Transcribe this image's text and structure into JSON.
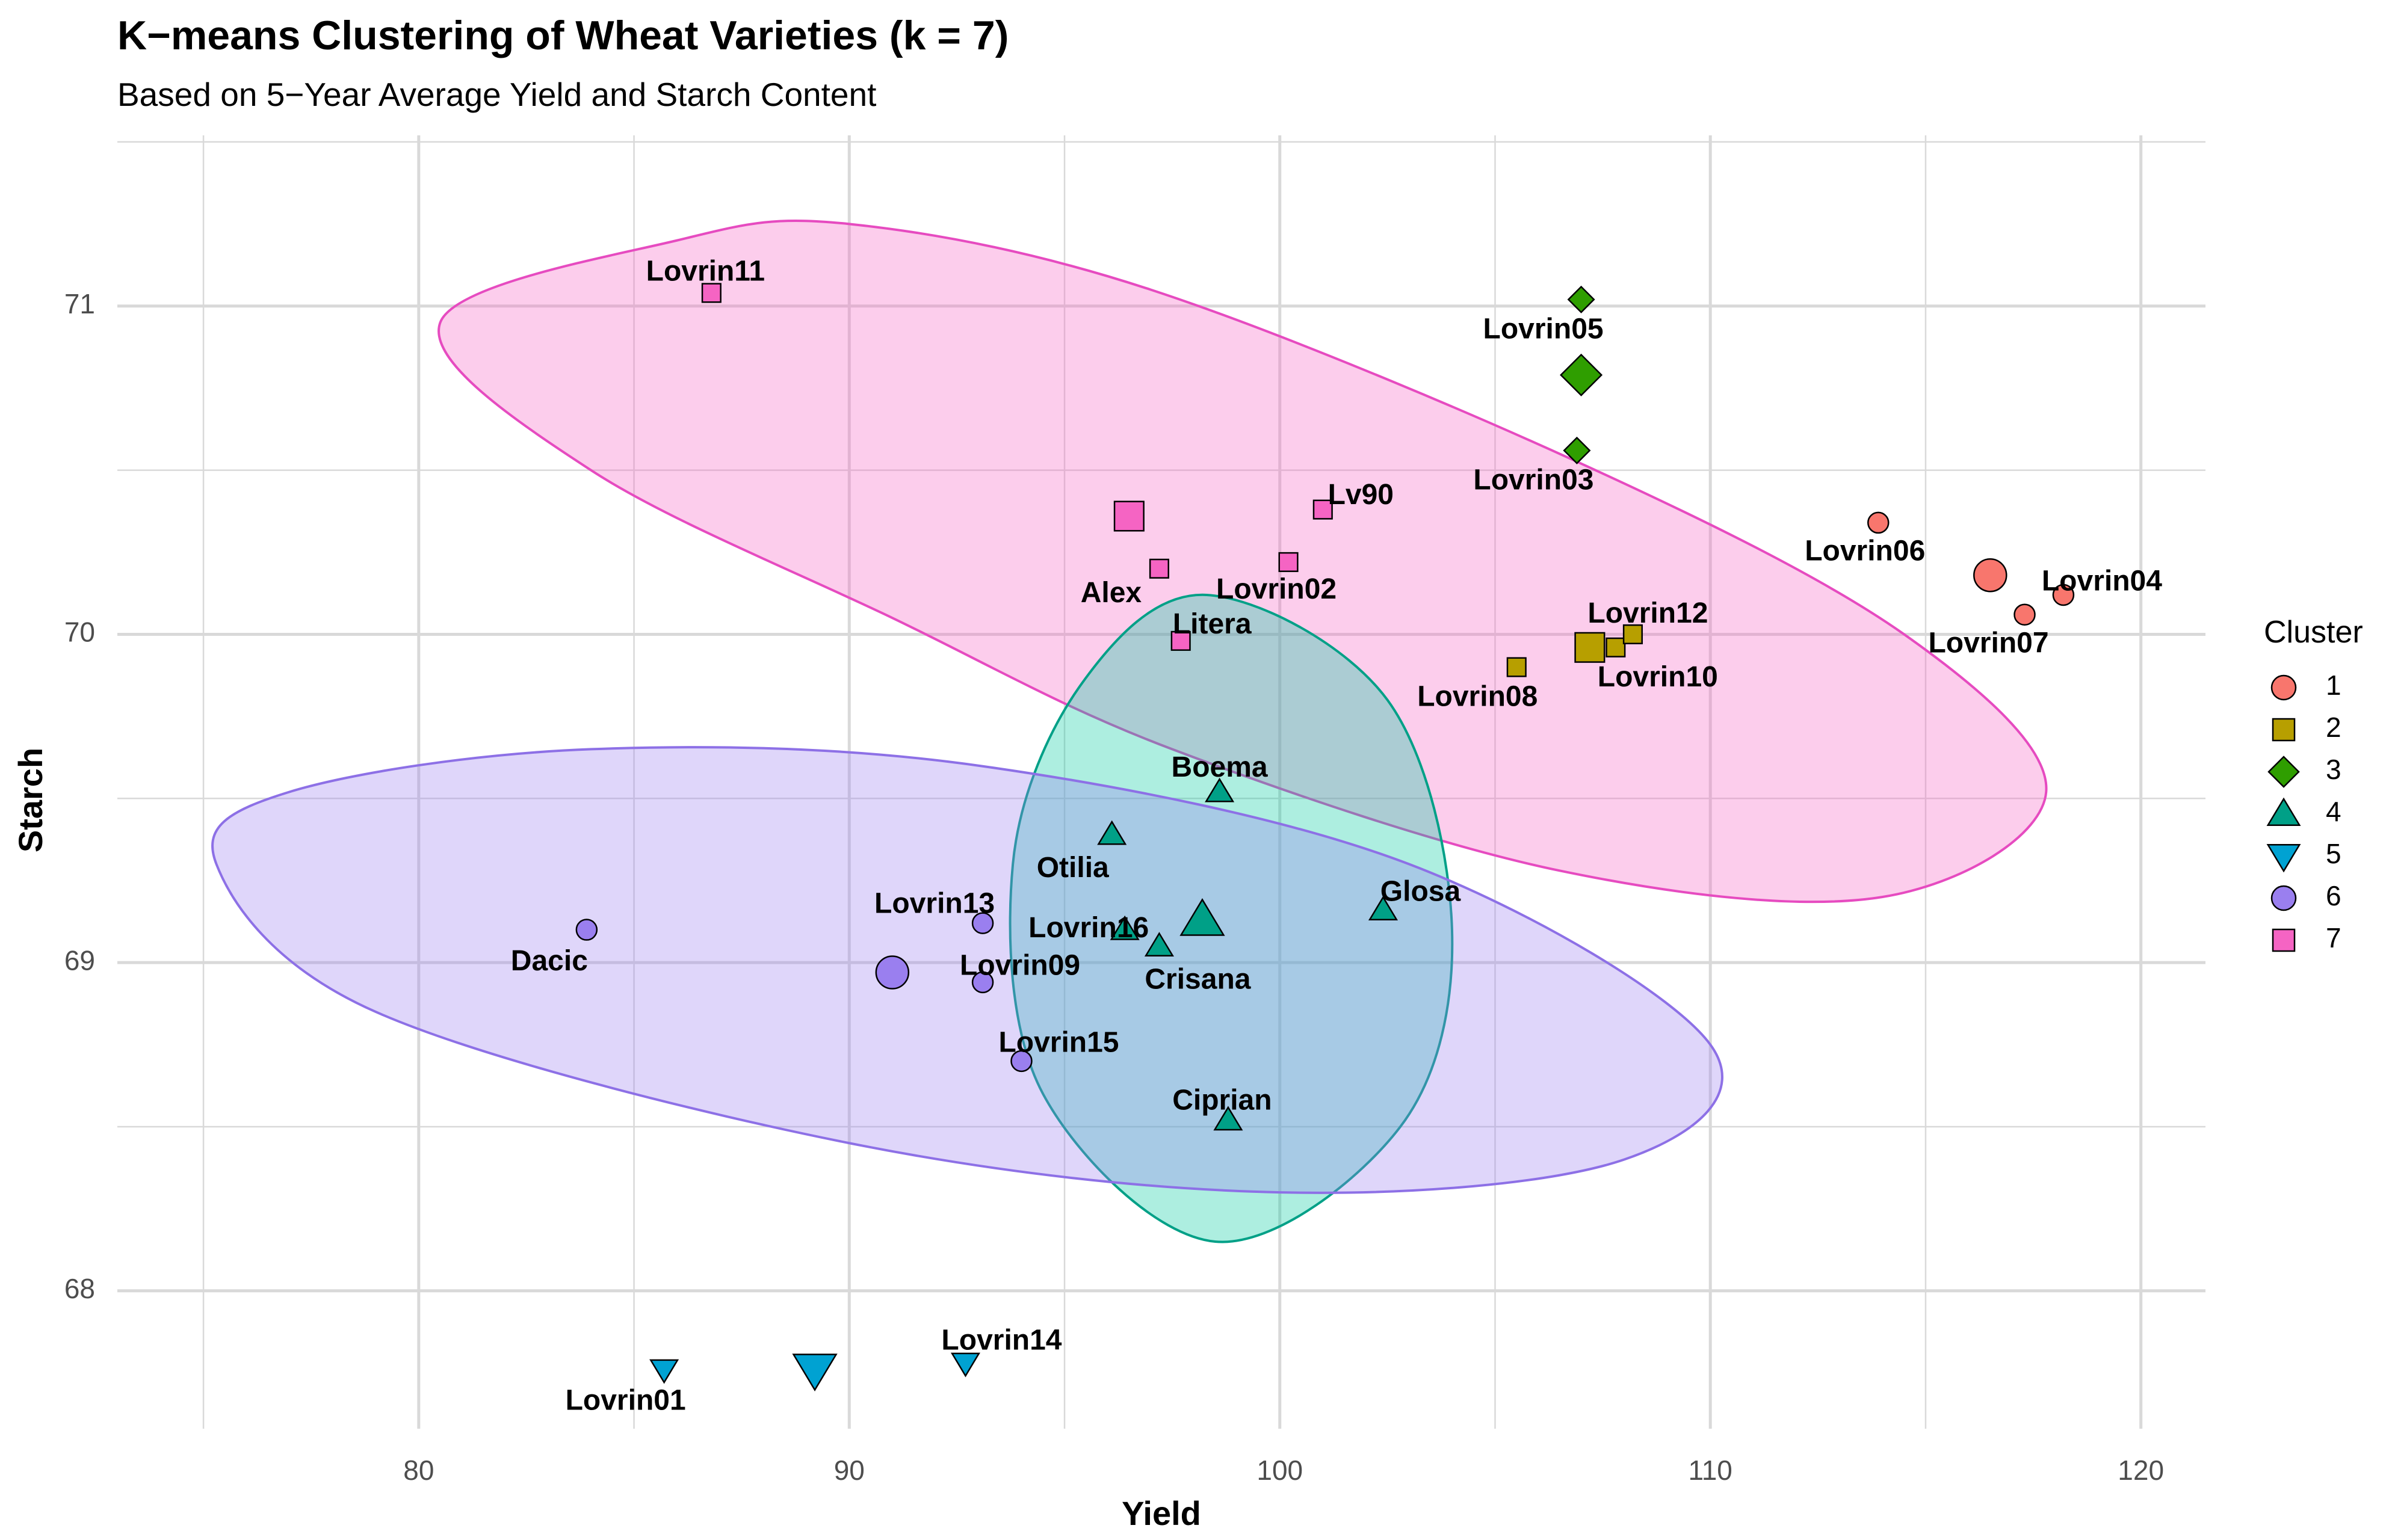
{
  "chart_data": {
    "type": "scatter",
    "title": "K−means Clustering of Wheat Varieties (k = 7)",
    "subtitle": "Based on 5−Year Average Yield and Starch Content",
    "xlabel": "Yield",
    "ylabel": "Starch",
    "xlim": [
      73,
      121.5
    ],
    "ylim": [
      67.58,
      71.52
    ],
    "x_ticks": [
      80,
      90,
      100,
      110,
      120
    ],
    "y_ticks": [
      68,
      69,
      70,
      71
    ],
    "x_tick_labels": [
      "80",
      "90",
      "100",
      "110",
      "120"
    ],
    "y_tick_labels": [
      "68",
      "69",
      "70",
      "71"
    ],
    "grid": true,
    "legend": {
      "title": "Cluster",
      "position": "right",
      "entries": [
        {
          "label": "1",
          "shape": "circle",
          "color": "#F8766D"
        },
        {
          "label": "2",
          "shape": "square",
          "color": "#B79F00"
        },
        {
          "label": "3",
          "shape": "diamond",
          "color": "#2F9E00"
        },
        {
          "label": "4",
          "shape": "triangle-up",
          "color": "#00A087"
        },
        {
          "label": "5",
          "shape": "triangle-down",
          "color": "#00A2D2"
        },
        {
          "label": "6",
          "shape": "circle",
          "color": "#9A7FEF"
        },
        {
          "label": "7",
          "shape": "square",
          "color": "#F564C3"
        }
      ]
    },
    "ellipses": [
      {
        "cluster": "7",
        "points": [
          [
            86,
            71.2
          ],
          [
            80.5,
            70.95
          ],
          [
            84,
            70.5
          ],
          [
            91,
            70.05
          ],
          [
            97.5,
            69.65
          ],
          [
            106.5,
            69.28
          ],
          [
            114,
            69.2
          ],
          [
            117.8,
            69.52
          ],
          [
            114.5,
            70.0
          ],
          [
            107,
            70.52
          ],
          [
            97,
            71.05
          ],
          [
            90,
            71.25
          ]
        ],
        "fill": "#F564C3",
        "stroke": "#E64BC0"
      },
      {
        "cluster": "4",
        "points": [
          [
            98.3,
            70.12
          ],
          [
            102.5,
            69.8
          ],
          [
            104,
            69.1
          ],
          [
            102.8,
            68.5
          ],
          [
            98.5,
            68.15
          ],
          [
            94.5,
            68.6
          ],
          [
            93.8,
            69.3
          ],
          [
            95.4,
            69.85
          ]
        ],
        "fill": "#00C9A0",
        "stroke": "#00A087"
      },
      {
        "cluster": "6",
        "points": [
          [
            84,
            69.65
          ],
          [
            93,
            69.6
          ],
          [
            103,
            69.3
          ],
          [
            110,
            68.75
          ],
          [
            108,
            68.4
          ],
          [
            100,
            68.3
          ],
          [
            90,
            68.45
          ],
          [
            79,
            68.85
          ],
          [
            75.3,
            69.3
          ],
          [
            77,
            69.52
          ]
        ],
        "fill": "#9A7FEF",
        "stroke": "#8D70E6"
      }
    ],
    "points": [
      {
        "name": "Lovrin04",
        "x": 118.2,
        "y": 70.12,
        "cluster": "1"
      },
      {
        "name": "Lovrin06",
        "x": 113.9,
        "y": 70.34,
        "cluster": "1"
      },
      {
        "name": "Lovrin07",
        "x": 117.3,
        "y": 70.06,
        "cluster": "1"
      },
      {
        "name": "Lovrin08",
        "x": 105.5,
        "y": 69.9,
        "cluster": "2"
      },
      {
        "name": "Lovrin10",
        "x": 107.8,
        "y": 69.96,
        "cluster": "2"
      },
      {
        "name": "Lovrin12",
        "x": 108.2,
        "y": 70.0,
        "cluster": "2"
      },
      {
        "name": "Lovrin05",
        "x": 107.0,
        "y": 71.02,
        "cluster": "3"
      },
      {
        "name": "Lovrin03",
        "x": 106.9,
        "y": 70.56,
        "cluster": "3"
      },
      {
        "name": "Boema",
        "x": 98.6,
        "y": 69.52,
        "cluster": "4"
      },
      {
        "name": "Otilia",
        "x": 96.1,
        "y": 69.39,
        "cluster": "4"
      },
      {
        "name": "Glosa",
        "x": 102.4,
        "y": 69.16,
        "cluster": "4"
      },
      {
        "name": "Lovrin16",
        "x": 96.4,
        "y": 69.1,
        "cluster": "4"
      },
      {
        "name": "Crisana",
        "x": 97.2,
        "y": 69.05,
        "cluster": "4"
      },
      {
        "name": "Ciprian",
        "x": 98.8,
        "y": 68.52,
        "cluster": "4"
      },
      {
        "name": "Lovrin01",
        "x": 85.7,
        "y": 67.76,
        "cluster": "5"
      },
      {
        "name": "Lovrin14",
        "x": 92.7,
        "y": 67.78,
        "cluster": "5"
      },
      {
        "name": "Dacic",
        "x": 83.9,
        "y": 69.1,
        "cluster": "6"
      },
      {
        "name": "Lovrin13",
        "x": 93.1,
        "y": 69.12,
        "cluster": "6"
      },
      {
        "name": "Lovrin09",
        "x": 93.1,
        "y": 68.94,
        "cluster": "6"
      },
      {
        "name": "Lovrin15",
        "x": 94.0,
        "y": 68.7,
        "cluster": "6"
      },
      {
        "name": "Lovrin11",
        "x": 86.8,
        "y": 71.04,
        "cluster": "7"
      },
      {
        "name": "Lv90",
        "x": 101.0,
        "y": 70.38,
        "cluster": "7"
      },
      {
        "name": "Lovrin02",
        "x": 100.2,
        "y": 70.22,
        "cluster": "7"
      },
      {
        "name": "Alex",
        "x": 97.2,
        "y": 70.2,
        "cluster": "7"
      },
      {
        "name": "Litera",
        "x": 97.7,
        "y": 69.98,
        "cluster": "7"
      }
    ],
    "centroids": [
      {
        "cluster": "1",
        "x": 116.5,
        "y": 70.18
      },
      {
        "cluster": "2",
        "x": 107.2,
        "y": 69.96
      },
      {
        "cluster": "3",
        "x": 107.0,
        "y": 70.79
      },
      {
        "cluster": "4",
        "x": 98.2,
        "y": 69.13
      },
      {
        "cluster": "5",
        "x": 89.2,
        "y": 67.76
      },
      {
        "cluster": "6",
        "x": 91.0,
        "y": 68.97
      },
      {
        "cluster": "7",
        "x": 96.5,
        "y": 70.36
      }
    ]
  }
}
